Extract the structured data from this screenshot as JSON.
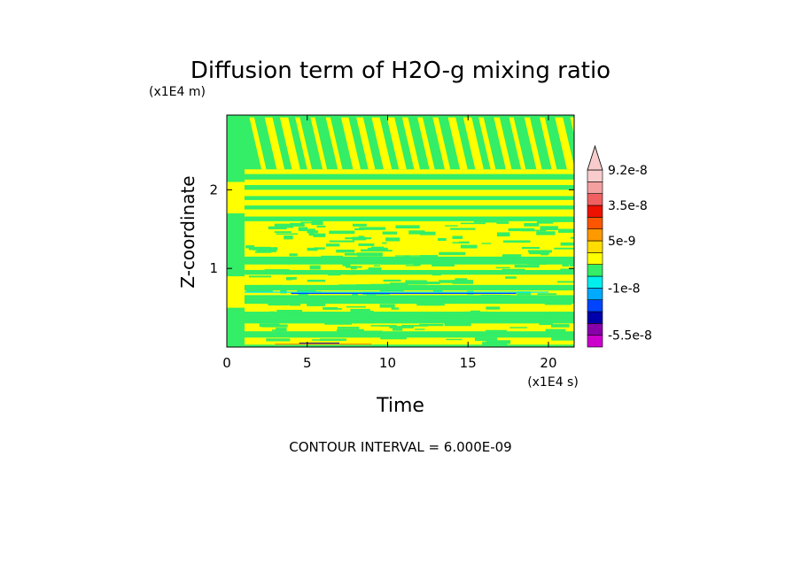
{
  "chart_data": {
    "type": "heatmap",
    "title": "Diffusion term of H2O-g mixing ratio",
    "xlabel": "Time",
    "ylabel": "Z-coordinate",
    "x_unit": "(x1E4 s)",
    "y_unit": "(x1E4 m)",
    "xlim": [
      0,
      21.6
    ],
    "ylim": [
      0,
      2.95
    ],
    "x_ticks": [
      0,
      5,
      10,
      15,
      20
    ],
    "y_ticks": [
      1,
      2
    ],
    "contour_interval_text": "CONTOUR INTERVAL = 6.000E-09",
    "colorbar": {
      "levels": [
        -7.5e-08,
        -5.5e-08,
        -3.5e-08,
        -2.2e-08,
        -1.5e-08,
        -1e-08,
        -5e-09,
        -1e-09,
        2e-09,
        5e-09,
        8e-09,
        2.2e-08,
        3.5e-08,
        5.2e-08,
        7.2e-08,
        9.2e-08
      ],
      "colors": [
        "#cc00cc",
        "#8800aa",
        "#0000aa",
        "#0044ff",
        "#00aaff",
        "#00eeee",
        "#33ee66",
        "#ffff00",
        "#ffdd00",
        "#ff9900",
        "#ff5500",
        "#ee1100",
        "#f06060",
        "#f4a0a0",
        "#f8cccc"
      ],
      "labeled_levels": [
        "9.2e-8",
        "3.5e-8",
        "5e-9",
        "-1e-8",
        "-5.5e-8"
      ],
      "extend_top": true
    },
    "dominant_colors": {
      "positive_small": "#ffff00",
      "negative_small": "#33ee66"
    }
  }
}
